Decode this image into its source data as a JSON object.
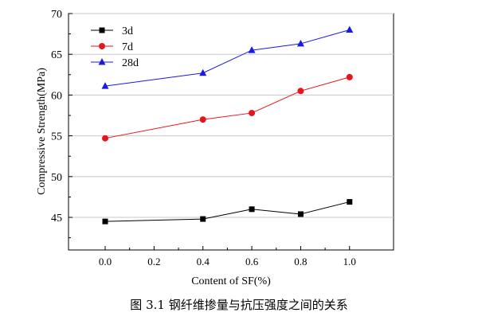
{
  "chart_data": {
    "type": "line",
    "xlabel": "Content of SF(%)",
    "ylabel": "Compressive Strength(MPa)",
    "xlim": [
      -0.15,
      1.18
    ],
    "ylim": [
      41,
      70
    ],
    "x_ticks": [
      "0.0",
      "0.2",
      "0.4",
      "0.6",
      "0.8",
      "1.0"
    ],
    "y_ticks": [
      "45",
      "50",
      "55",
      "60",
      "65",
      "70"
    ],
    "grid": true,
    "legend_position": "top-left",
    "x": [
      0.0,
      0.4,
      0.6,
      0.8,
      1.0
    ],
    "series": [
      {
        "name": "3d",
        "values": [
          44.5,
          44.8,
          46.0,
          45.4,
          46.9
        ],
        "color": "#000000",
        "marker": "square"
      },
      {
        "name": "7d",
        "values": [
          54.7,
          57.0,
          57.8,
          60.5,
          62.2
        ],
        "color": "#e8141b",
        "marker": "circle"
      },
      {
        "name": "28d",
        "values": [
          61.1,
          62.7,
          65.5,
          66.3,
          68.0
        ],
        "color": "#1a1ae6",
        "marker": "triangle"
      }
    ]
  },
  "caption": "图 3.1  钢纤维掺量与抗压强度之间的关系"
}
